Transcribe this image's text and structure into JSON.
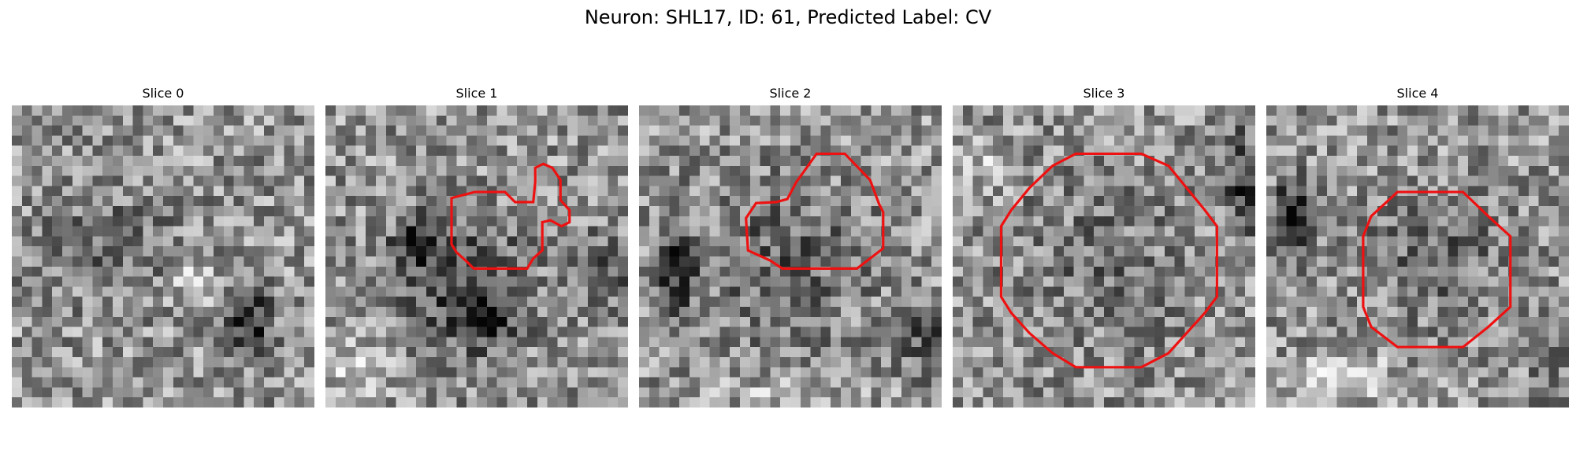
{
  "title": "Neuron: SHL17, ID: 61, Predicted Label: CV",
  "contour_color": "#ee1111",
  "panels": [
    {
      "label": "Slice 0",
      "has_contour": false,
      "blobs": [
        [
          0.78,
          0.72,
          0.1,
          0.14,
          -0.45
        ],
        [
          0.3,
          0.45,
          0.25,
          0.2,
          -0.18
        ],
        [
          0.6,
          0.6,
          0.08,
          0.08,
          0.25
        ]
      ]
    },
    {
      "label": "Slice 1",
      "has_contour": true,
      "blobs": [
        [
          0.45,
          0.6,
          0.28,
          0.28,
          -0.3
        ],
        [
          0.3,
          0.45,
          0.08,
          0.1,
          -0.4
        ],
        [
          0.52,
          0.72,
          0.1,
          0.08,
          -0.35
        ],
        [
          0.92,
          0.55,
          0.1,
          0.15,
          -0.25
        ],
        [
          0.1,
          0.85,
          0.18,
          0.15,
          0.18
        ]
      ]
    },
    {
      "label": "Slice 2",
      "has_contour": true,
      "blobs": [
        [
          0.48,
          0.52,
          0.33,
          0.33,
          -0.18
        ],
        [
          0.12,
          0.55,
          0.08,
          0.2,
          -0.35
        ],
        [
          0.95,
          0.78,
          0.1,
          0.15,
          -0.25
        ],
        [
          0.5,
          0.95,
          0.3,
          0.08,
          0.12
        ]
      ]
    },
    {
      "label": "Slice 3",
      "has_contour": true,
      "blobs": [
        [
          0.5,
          0.52,
          0.35,
          0.35,
          -0.12
        ],
        [
          0.96,
          0.25,
          0.06,
          0.2,
          -0.4
        ],
        [
          0.1,
          0.2,
          0.1,
          0.1,
          0.18
        ]
      ]
    },
    {
      "label": "Slice 4",
      "has_contour": true,
      "blobs": [
        [
          0.08,
          0.38,
          0.07,
          0.14,
          -0.55
        ],
        [
          0.55,
          0.5,
          0.25,
          0.25,
          -0.18
        ],
        [
          0.25,
          0.9,
          0.2,
          0.1,
          0.22
        ],
        [
          0.95,
          0.9,
          0.1,
          0.12,
          -0.1
        ]
      ]
    }
  ]
}
